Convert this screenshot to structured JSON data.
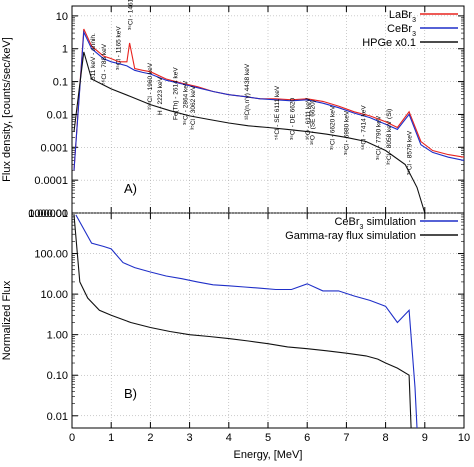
{
  "chart_data": [
    {
      "panel": "top",
      "type": "line",
      "panel_label": "A)",
      "ylabel": "Flux density, [counts/sec/keV]",
      "xlabel": "",
      "xlim": [
        0,
        10
      ],
      "ylim": [
        1e-05,
        20
      ],
      "yscale": "log",
      "grid": true,
      "legend_position": "top-right",
      "yticks": [
        "10",
        "1",
        "0.1",
        "0.01",
        "0.001",
        "0.0001",
        "0.00001"
      ],
      "series": [
        {
          "name": "LaBr3",
          "label_base": "LaBr",
          "label_sub": "3",
          "color": "#e8231f",
          "x": [
            0.05,
            0.3,
            0.5,
            0.8,
            1.0,
            1.2,
            1.4,
            1.47,
            1.6,
            1.8,
            2.0,
            2.4,
            2.8,
            3.2,
            3.6,
            4.0,
            4.4,
            4.8,
            5.2,
            5.6,
            6.0,
            6.4,
            6.8,
            7.2,
            7.6,
            8.0,
            8.3,
            8.6,
            8.9,
            9.2,
            9.6,
            10.0
          ],
          "y": [
            0.0002,
            4,
            1.2,
            0.6,
            0.5,
            0.4,
            0.4,
            1.5,
            0.25,
            0.22,
            0.2,
            0.12,
            0.09,
            0.07,
            0.05,
            0.04,
            0.035,
            0.03,
            0.03,
            0.028,
            0.03,
            0.025,
            0.018,
            0.012,
            0.009,
            0.006,
            0.004,
            0.012,
            0.0015,
            0.0008,
            0.0006,
            0.0005
          ]
        },
        {
          "name": "CeBr3",
          "label_base": "CeBr",
          "label_sub": "3",
          "color": "#1f2fc8",
          "x": [
            0.05,
            0.3,
            0.5,
            0.8,
            1.0,
            1.2,
            1.4,
            1.6,
            1.8,
            2.0,
            2.4,
            2.8,
            3.2,
            3.6,
            4.0,
            4.4,
            4.8,
            5.2,
            5.6,
            6.0,
            6.4,
            6.8,
            7.2,
            7.6,
            8.0,
            8.3,
            8.6,
            8.9,
            9.2,
            9.6,
            10.0
          ],
          "y": [
            0.0002,
            3.2,
            1.0,
            0.5,
            0.4,
            0.35,
            0.3,
            0.22,
            0.19,
            0.17,
            0.11,
            0.085,
            0.065,
            0.05,
            0.04,
            0.035,
            0.03,
            0.028,
            0.026,
            0.028,
            0.022,
            0.016,
            0.011,
            0.008,
            0.005,
            0.0035,
            0.01,
            0.0012,
            0.0007,
            0.0005,
            0.0004
          ]
        },
        {
          "name": "HPGe x0.1",
          "label_base": "HPGe x0.1",
          "label_sub": "",
          "color": "#111111",
          "x": [
            0.05,
            0.3,
            0.5,
            1.0,
            1.5,
            2.0,
            2.5,
            3.0,
            3.5,
            4.0,
            4.5,
            5.0,
            5.5,
            6.0,
            6.5,
            7.0,
            7.5,
            8.0,
            8.5,
            8.8,
            9.0,
            9.5,
            10.0
          ],
          "y": [
            0.003,
            0.8,
            0.12,
            0.06,
            0.035,
            0.02,
            0.013,
            0.009,
            0.007,
            0.0055,
            0.0045,
            0.004,
            0.0035,
            0.003,
            0.0025,
            0.002,
            0.0015,
            0.0008,
            0.0003,
            6e-05,
            1e-05,
            1e-05,
            1e-05
          ]
        }
      ],
      "annotations": [
        "511 keV - annih.",
        "⁵⁶Cl - 788 keV",
        "³⁵Cl - 1165 keV",
        "³⁵Cl - 1461 keV + ¹³⁸La - 1471 keV",
        "¹⁹⁸Cl - 1960 keV",
        "H - 2223 keV",
        "Fe(Th) - 2614 keV",
        "³⁵Cl - 2864 keV",
        "³⁵Cl - 3062 keV",
        "¹²C(n,n'γ) 4438 keV",
        "⁵⁶Cl - SE 6111 keV",
        "³⁵Cl - DE 6620",
        "¹⁶O - 6111 keV",
        "¹⁶O - (SE 6620)",
        "³⁵Cl - 6620 keV",
        "³⁵Cl - 6980 keV",
        "⁵⁶Cl - 7414 keV",
        "³⁵Cl - 7790 keV",
        "³⁵Cl - 8058 keV (Si)",
        "³⁵Cl - 8579 keV"
      ]
    },
    {
      "panel": "bottom",
      "type": "line",
      "panel_label": "B)",
      "ylabel": "Normalized Flux",
      "xlabel": "Energy, [MeV]",
      "xlim": [
        0,
        10
      ],
      "ylim": [
        0.005,
        1000
      ],
      "yscale": "log",
      "grid": true,
      "legend_position": "top-right",
      "xticks": [
        "0",
        "1",
        "2",
        "3",
        "4",
        "5",
        "6",
        "7",
        "8",
        "9",
        "10"
      ],
      "yticks": [
        "1000.00",
        "100.00",
        "10.00",
        "1.00",
        "0.10",
        "0.01"
      ],
      "series": [
        {
          "name": "CeBr3 simulation",
          "label_base": "CeBr",
          "label_sub": "3",
          "label_tail": " simulation",
          "color": "#1f2fc8",
          "x": [
            0.1,
            0.3,
            0.5,
            0.8,
            1.0,
            1.3,
            1.6,
            2.0,
            2.4,
            2.8,
            3.2,
            3.6,
            4.0,
            4.4,
            4.8,
            5.2,
            5.6,
            6.0,
            6.4,
            6.8,
            7.2,
            7.6,
            8.0,
            8.3,
            8.6,
            8.75,
            8.8
          ],
          "y": [
            900,
            400,
            180,
            150,
            130,
            60,
            45,
            35,
            28,
            24,
            20,
            17,
            16,
            15,
            14,
            13,
            13,
            18,
            12,
            12,
            9,
            7,
            5,
            2,
            4,
            0.05,
            0.005
          ]
        },
        {
          "name": "Gamma-ray flux simulation",
          "label_base": "Gamma-ray flux simulation",
          "label_sub": "",
          "label_tail": "",
          "color": "#111111",
          "x": [
            0.05,
            0.2,
            0.4,
            0.7,
            1.0,
            1.5,
            2.0,
            2.5,
            3.0,
            3.5,
            4.0,
            4.5,
            5.0,
            5.5,
            6.0,
            6.5,
            7.0,
            7.5,
            7.8,
            8.0,
            8.3,
            8.6,
            8.65
          ],
          "y": [
            900,
            20,
            8,
            4,
            3,
            2,
            1.5,
            1.2,
            1.0,
            0.9,
            0.8,
            0.7,
            0.6,
            0.5,
            0.45,
            0.4,
            0.35,
            0.3,
            0.25,
            0.2,
            0.15,
            0.1,
            0.005
          ]
        }
      ]
    }
  ]
}
